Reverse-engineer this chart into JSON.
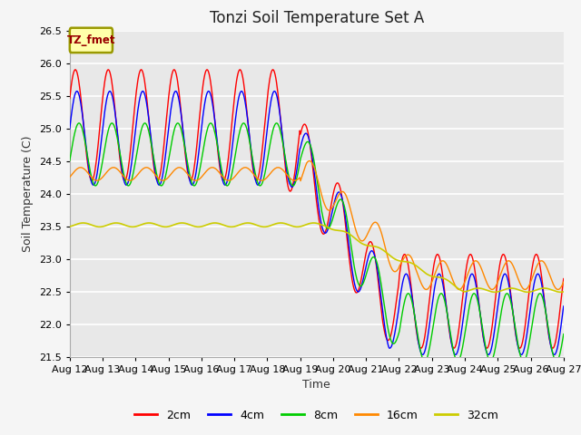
{
  "title": "Tonzi Soil Temperature Set A",
  "xlabel": "Time",
  "ylabel": "Soil Temperature (C)",
  "ylim": [
    21.5,
    26.5
  ],
  "yticks": [
    21.5,
    22.0,
    22.5,
    23.0,
    23.5,
    24.0,
    24.5,
    25.0,
    25.5,
    26.0,
    26.5
  ],
  "xtick_labels": [
    "Aug 12",
    "Aug 13",
    "Aug 14",
    "Aug 15",
    "Aug 16",
    "Aug 17",
    "Aug 18",
    "Aug 19",
    "Aug 20",
    "Aug 21",
    "Aug 22",
    "Aug 23",
    "Aug 24",
    "Aug 25",
    "Aug 26",
    "Aug 27"
  ],
  "colors": {
    "2cm": "#ff0000",
    "4cm": "#0000ff",
    "8cm": "#00cc00",
    "16cm": "#ff8800",
    "32cm": "#cccc00"
  },
  "legend_label": "TZ_fmet",
  "legend_bg": "#ffffaa",
  "legend_edge": "#999900",
  "bg_color": "#e8e8e8",
  "grid_color": "#ffffff",
  "title_fontsize": 12,
  "axis_fontsize": 9,
  "tick_fontsize": 8,
  "fig_bg": "#f5f5f5"
}
